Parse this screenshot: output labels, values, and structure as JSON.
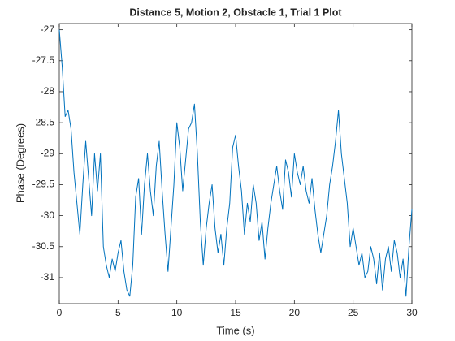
{
  "chart_data": {
    "type": "line",
    "title": "Distance 5, Motion 2, Obstacle 1, Trial 1 Plot",
    "x_label": "Time (s)",
    "y_label": "Phase (Degrees)",
    "xlim": [
      0,
      30
    ],
    "ylim": [
      -31.42,
      -26.9
    ],
    "xticks": [
      0,
      5,
      10,
      15,
      20,
      25,
      30
    ],
    "yticks": [
      -31,
      -30.5,
      -30,
      -29.5,
      -29,
      -28.5,
      -28,
      -27.5,
      -27
    ],
    "x": [
      0,
      0.25,
      0.5,
      0.75,
      1,
      1.25,
      1.5,
      1.75,
      2,
      2.25,
      2.5,
      2.75,
      3,
      3.25,
      3.5,
      3.75,
      4,
      4.25,
      4.5,
      4.75,
      5,
      5.25,
      5.5,
      5.75,
      6,
      6.25,
      6.5,
      6.75,
      7,
      7.25,
      7.5,
      7.75,
      8,
      8.25,
      8.5,
      8.75,
      9,
      9.25,
      9.5,
      9.75,
      10,
      10.25,
      10.5,
      10.75,
      11,
      11.25,
      11.5,
      11.75,
      12,
      12.25,
      12.5,
      12.75,
      13,
      13.25,
      13.5,
      13.75,
      14,
      14.25,
      14.5,
      14.75,
      15,
      15.25,
      15.5,
      15.75,
      16,
      16.25,
      16.5,
      16.75,
      17,
      17.25,
      17.5,
      17.75,
      18,
      18.25,
      18.5,
      18.75,
      19,
      19.25,
      19.5,
      19.75,
      20,
      20.25,
      20.5,
      20.75,
      21,
      21.25,
      21.5,
      21.75,
      22,
      22.25,
      22.5,
      22.75,
      23,
      23.25,
      23.5,
      23.75,
      24,
      24.25,
      24.5,
      24.75,
      25,
      25.25,
      25.5,
      25.75,
      26,
      26.25,
      26.5,
      26.75,
      27,
      27.25,
      27.5,
      27.75,
      28,
      28.25,
      28.5,
      28.75,
      29,
      29.25,
      29.5,
      29.75,
      30
    ],
    "series": [
      {
        "name": "Phase",
        "color": "#0072bd",
        "values": [
          -27.0,
          -27.6,
          -28.4,
          -28.3,
          -28.6,
          -29.3,
          -29.8,
          -30.3,
          -29.5,
          -28.8,
          -29.4,
          -30.0,
          -29.0,
          -29.6,
          -29.0,
          -30.5,
          -30.8,
          -31.0,
          -30.7,
          -30.9,
          -30.6,
          -30.4,
          -30.9,
          -31.2,
          -31.3,
          -30.8,
          -29.7,
          -29.4,
          -30.3,
          -29.5,
          -29.0,
          -29.6,
          -30.0,
          -29.2,
          -28.8,
          -29.6,
          -30.3,
          -30.9,
          -30.2,
          -29.5,
          -28.5,
          -28.9,
          -29.6,
          -29.1,
          -28.6,
          -28.5,
          -28.2,
          -29.0,
          -30.1,
          -30.8,
          -30.2,
          -29.8,
          -29.5,
          -30.2,
          -30.6,
          -30.3,
          -30.8,
          -30.2,
          -29.8,
          -28.9,
          -28.7,
          -29.2,
          -29.6,
          -30.3,
          -29.8,
          -30.1,
          -29.5,
          -29.8,
          -30.4,
          -30.1,
          -30.7,
          -30.2,
          -29.8,
          -29.5,
          -29.2,
          -29.6,
          -29.9,
          -29.1,
          -29.3,
          -29.7,
          -29.0,
          -29.3,
          -29.5,
          -29.2,
          -29.6,
          -29.8,
          -29.4,
          -29.9,
          -30.3,
          -30.6,
          -30.3,
          -30.0,
          -29.5,
          -29.2,
          -28.8,
          -28.3,
          -29.0,
          -29.4,
          -29.8,
          -30.5,
          -30.2,
          -30.5,
          -30.8,
          -30.6,
          -31.0,
          -30.9,
          -30.5,
          -30.7,
          -31.1,
          -30.6,
          -31.2,
          -30.7,
          -30.5,
          -30.9,
          -30.4,
          -30.6,
          -31.0,
          -30.7,
          -31.3,
          -30.5,
          -29.9
        ]
      }
    ]
  }
}
